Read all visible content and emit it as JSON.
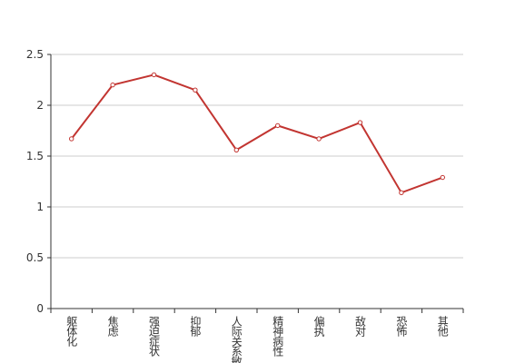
{
  "chart_data": {
    "type": "line",
    "categories": [
      "躯体化",
      "焦虑",
      "强迫症状",
      "抑郁",
      "人际关系敏感",
      "精神病性",
      "偏执",
      "敌对",
      "恐怖",
      "其他"
    ],
    "values": [
      1.67,
      2.2,
      2.3,
      2.15,
      1.56,
      1.8,
      1.67,
      1.83,
      1.14,
      1.29
    ],
    "color": "#c23531",
    "ylim": [
      0,
      2.5
    ],
    "yticks": [
      0,
      0.5,
      1,
      1.5,
      2,
      2.5
    ],
    "grid": true
  }
}
